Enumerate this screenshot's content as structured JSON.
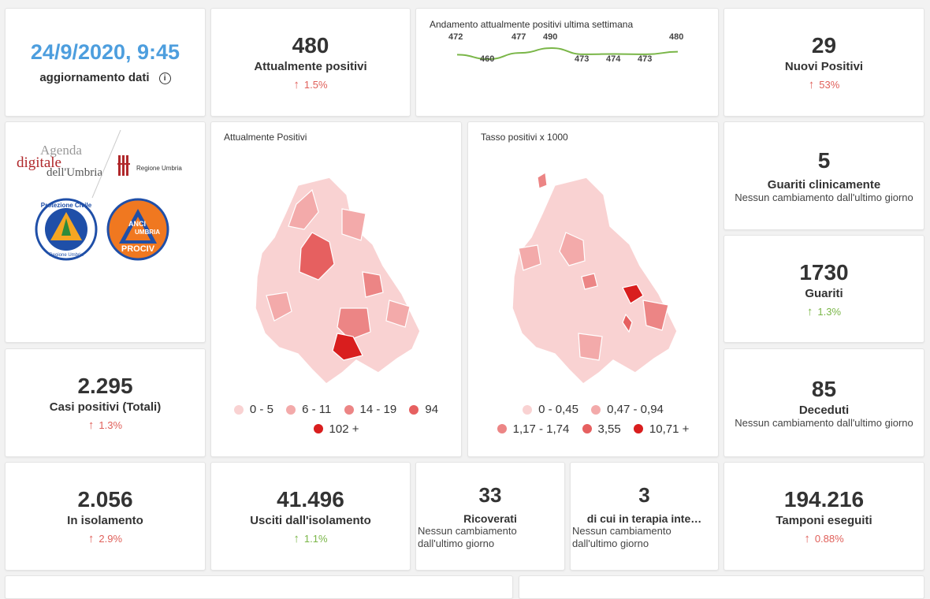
{
  "update": {
    "date": "24/9/2020, 9:45",
    "label": "aggiornamento dati",
    "info_icon": "i"
  },
  "attualmente_positivi": {
    "value": "480",
    "label": "Attualmente positivi",
    "delta": "1.5%"
  },
  "trend": {
    "title": "Andamento attualmente positivi ultima settimana",
    "values": [
      472,
      460,
      477,
      490,
      473,
      474,
      473,
      480
    ],
    "labels": [
      "472",
      "460",
      "477",
      "490",
      "473",
      "474",
      "473",
      "480"
    ]
  },
  "nuovi_positivi": {
    "value": "29",
    "label": "Nuovi Positivi",
    "delta": "53%"
  },
  "logos": {
    "agenda_line1": "Agenda",
    "agenda_line2": "digitale",
    "agenda_line3": "dell'Umbria",
    "regione": "Regione Umbria",
    "protezione": "Protezione Civile",
    "protezione_sub": "Regione Umbria",
    "anci1": "ANCI",
    "anci2": "UMBRIA",
    "anci3": "PROCIV"
  },
  "map_left": {
    "title": "Attualmente Positivi",
    "legend": [
      "0 - 5",
      "6 - 11",
      "14 - 19",
      "94",
      "102 +"
    ]
  },
  "map_right": {
    "title": "Tasso positivi x 1000",
    "legend": [
      "0 - 0,45",
      "0,47 - 0,94",
      "1,17 - 1,74",
      "3,55",
      "10,71 +"
    ]
  },
  "legend_colors": [
    "#f9d2d2",
    "#f3aaaa",
    "#ec8585",
    "#e66060",
    "#d91e1e"
  ],
  "guariti_clinicamente": {
    "value": "5",
    "label": "Guariti clinicamente",
    "note": "Nessun cambiamento dall'ultimo giorno"
  },
  "guariti": {
    "value": "1730",
    "label": "Guariti",
    "delta": "1.3%"
  },
  "casi_totali": {
    "value": "2.295",
    "label": "Casi positivi (Totali)",
    "delta": "1.3%"
  },
  "deceduti": {
    "value": "85",
    "label": "Deceduti",
    "note": "Nessun cambiamento dall'ultimo giorno"
  },
  "isolamento": {
    "value": "2.056",
    "label": "In isolamento",
    "delta": "2.9%"
  },
  "usciti": {
    "value": "41.496",
    "label": "Usciti dall'isolamento",
    "delta": "1.1%"
  },
  "ricoverati": {
    "value": "33",
    "label": "Ricoverati",
    "note_line1": "Nessun cambiamento",
    "note_line2": "dall'ultimo giorno"
  },
  "terapia": {
    "value": "3",
    "label": "di cui in terapia inte…",
    "note_line1": "Nessun cambiamento",
    "note_line2": "dall'ultimo giorno"
  },
  "tamponi": {
    "value": "194.216",
    "label": "Tamponi eseguiti",
    "delta": "0.88%"
  },
  "colors": {
    "accent_blue": "#4d9ede",
    "up_red": "#e0605a",
    "up_green": "#7ab648"
  }
}
